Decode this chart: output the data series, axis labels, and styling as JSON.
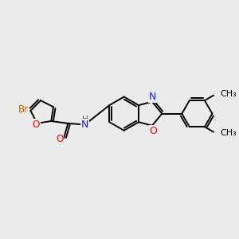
{
  "bg_color": "#ebebeb",
  "bond_color": "#000000",
  "bond_width": 1.4,
  "atom_colors": {
    "C": "#000000",
    "N": "#1a1aff",
    "O": "#ff0000",
    "Br": "#cc6600",
    "H": "#555555"
  },
  "font_size": 8.5,
  "figsize": [
    3.0,
    3.0
  ],
  "dpi": 100
}
